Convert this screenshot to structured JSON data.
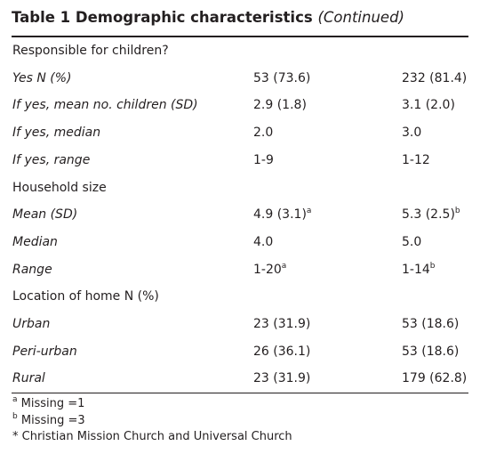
{
  "table": {
    "title": "Table 1 Demographic characteristics",
    "title_suffix": "(Continued)",
    "rows": [
      {
        "kind": "section",
        "label": "Responsible for children?"
      },
      {
        "kind": "item",
        "label": "Yes N (%)",
        "cells": [
          {
            "text": "53 (73.6)"
          },
          {
            "text": "232 (81.4)"
          }
        ]
      },
      {
        "kind": "item",
        "label": "If yes, mean no. children (SD)",
        "cells": [
          {
            "text": "2.9 (1.8)"
          },
          {
            "text": "3.1 (2.0)"
          }
        ]
      },
      {
        "kind": "item",
        "label": "If yes, median",
        "cells": [
          {
            "text": "2.0"
          },
          {
            "text": "3.0"
          }
        ]
      },
      {
        "kind": "item",
        "label": "If yes, range",
        "cells": [
          {
            "text": "1-9"
          },
          {
            "text": "1-12"
          }
        ]
      },
      {
        "kind": "section",
        "label": "Household size"
      },
      {
        "kind": "item",
        "label": "Mean (SD)",
        "cells": [
          {
            "text": "4.9 (3.1)",
            "sup": "a"
          },
          {
            "text": "5.3 (2.5)",
            "sup": "b"
          }
        ]
      },
      {
        "kind": "item",
        "label": "Median",
        "cells": [
          {
            "text": "4.0"
          },
          {
            "text": "5.0"
          }
        ]
      },
      {
        "kind": "item",
        "label": "Range",
        "cells": [
          {
            "text": "1-20",
            "sup": "a"
          },
          {
            "text": "1-14",
            "sup": "b"
          }
        ]
      },
      {
        "kind": "section",
        "label": "Location of home N (%)"
      },
      {
        "kind": "item",
        "label": "Urban",
        "cells": [
          {
            "text": "23 (31.9)"
          },
          {
            "text": "53 (18.6)"
          }
        ]
      },
      {
        "kind": "item",
        "label": "Peri-urban",
        "cells": [
          {
            "text": "26 (36.1)"
          },
          {
            "text": "53 (18.6)"
          }
        ]
      },
      {
        "kind": "item",
        "label": "Rural",
        "cells": [
          {
            "text": "23 (31.9)"
          },
          {
            "text": "179 (62.8)"
          }
        ]
      }
    ],
    "footnotes": [
      {
        "sup": "a",
        "text": "Missing =1"
      },
      {
        "sup": "b",
        "text": "Missing =3"
      },
      {
        "sup": "*",
        "text": "Christian Mission Church and Universal Church"
      }
    ]
  }
}
